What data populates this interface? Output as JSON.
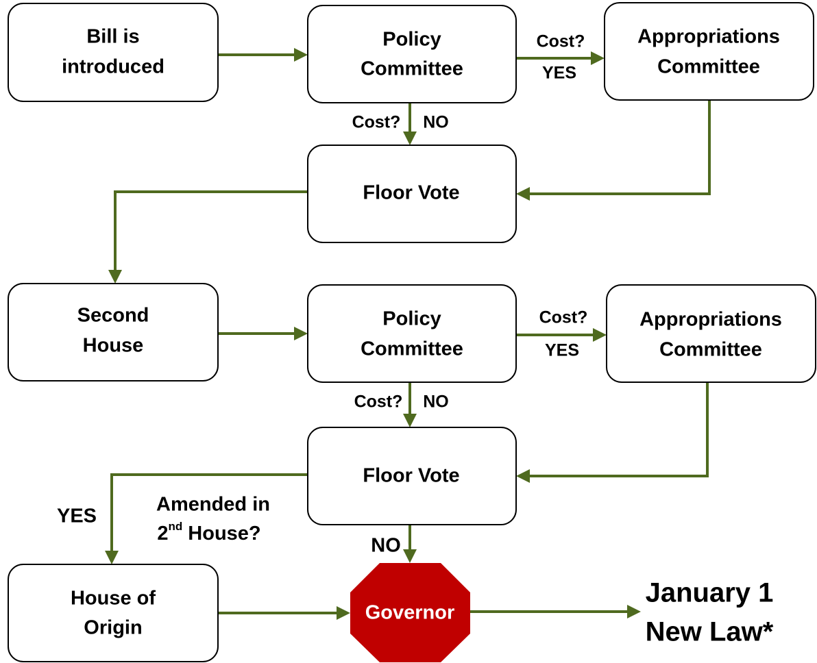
{
  "nodes": [
    {
      "lines": [
        "Bill is",
        "introduced"
      ]
    },
    {
      "lines": [
        "Policy",
        "Committee"
      ]
    },
    {
      "lines": [
        "Appropriations",
        "Committee"
      ]
    },
    {
      "lines": [
        "Floor Vote"
      ]
    },
    {
      "lines": [
        "Second",
        "House"
      ]
    },
    {
      "lines": [
        "Policy",
        "Committee"
      ]
    },
    {
      "lines": [
        "Appropriations",
        "Committee"
      ]
    },
    {
      "lines": [
        "Floor Vote"
      ]
    },
    {
      "lines": [
        "House of",
        "Origin"
      ]
    },
    {
      "lines": [
        "Governor"
      ]
    }
  ],
  "outcome": {
    "lines": [
      "January 1",
      "New Law*"
    ]
  },
  "edge_labels": {
    "cost1_yes": [
      "Cost?",
      "YES"
    ],
    "cost1_no": [
      "Cost?",
      "NO"
    ],
    "cost2_yes": [
      "Cost?",
      "YES"
    ],
    "cost2_no": [
      "Cost?",
      "NO"
    ],
    "amended_yes": "YES",
    "amended_question": {
      "line1": "Amended in",
      "line2": [
        "2",
        "nd",
        " House?"
      ]
    },
    "amended_no": "NO"
  }
}
